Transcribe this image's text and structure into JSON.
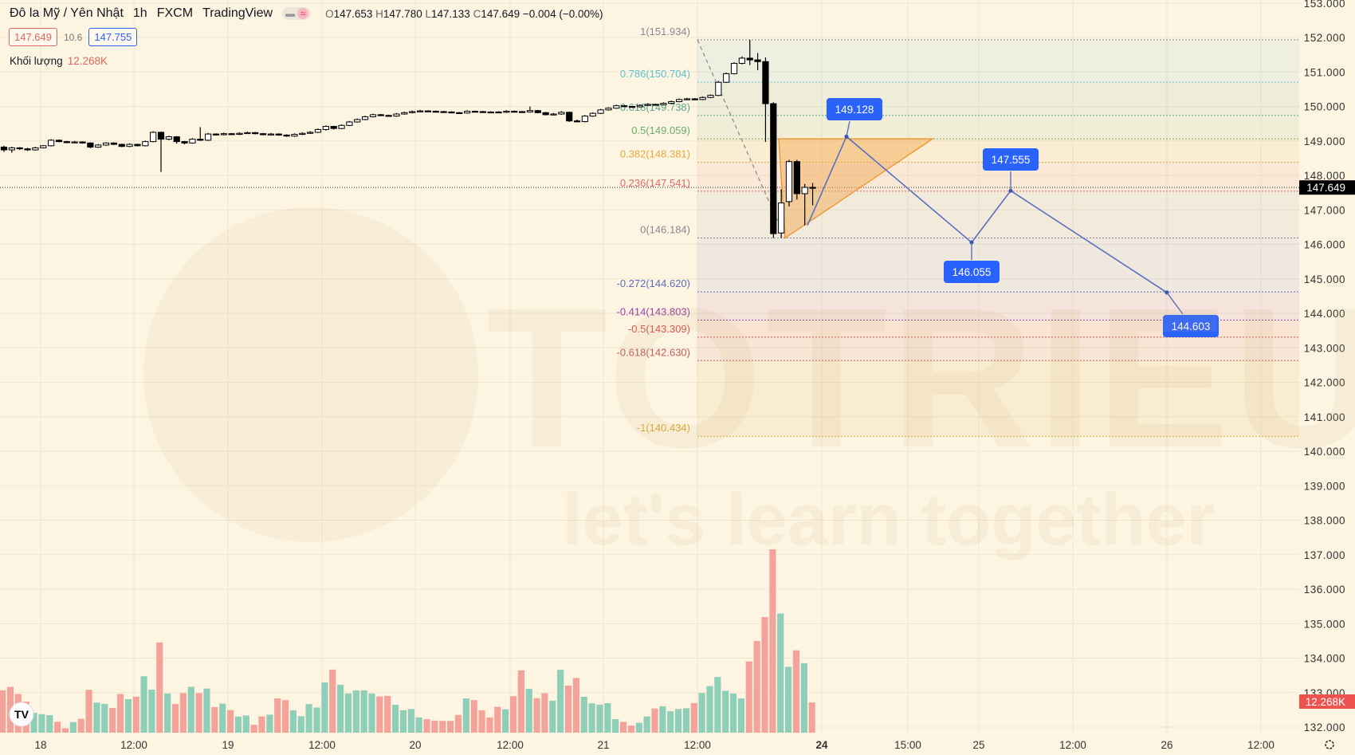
{
  "header": {
    "symbol": "Đô la Mỹ / Yên Nhật",
    "interval": "1h",
    "exchange": "FXCM",
    "source": "TradingView",
    "ohlc": {
      "o_label": "O",
      "o": "147.653",
      "h_label": "H",
      "h": "147.780",
      "l_label": "L",
      "l": "147.133",
      "c_label": "C",
      "c": "147.649",
      "change": "−0.004 (−0.00%)"
    },
    "bid": "147.649",
    "spread": "10.6",
    "ask": "147.755",
    "volume_label": "Khối lượng",
    "volume_value": "12.268K"
  },
  "watermark": {
    "brand": "TOTRIEU",
    "tagline": "let's learn together"
  },
  "colors": {
    "up": "#ffffff",
    "down": "#000000",
    "vol_up": "#8fcfb9",
    "vol_down": "#f4a39a",
    "accent": "#2962ff",
    "last_price_bg": "#000000",
    "volume_tag_bg": "#ef5350",
    "triangle": "#f2a64c"
  },
  "price_axis": {
    "ticks": [
      "153.000",
      "152.000",
      "151.000",
      "150.000",
      "149.000",
      "148.000",
      "147.000",
      "146.000",
      "145.000",
      "144.000",
      "143.000",
      "142.000",
      "141.000",
      "140.000",
      "139.000",
      "138.000",
      "137.000",
      "136.000",
      "135.000",
      "134.000",
      "133.000",
      "132.000"
    ],
    "last_price": "147.649",
    "volume_tag": "12.268K"
  },
  "time_axis": {
    "ticks": [
      "18",
      "12:00",
      "19",
      "12:00",
      "20",
      "12:00",
      "21",
      "12:00",
      "24",
      "15:00",
      "25",
      "12:00",
      "26",
      "12:00"
    ]
  },
  "fibonacci": [
    {
      "label": "1(151.934)",
      "price": 151.934,
      "color": "#868993"
    },
    {
      "label": "0.786(150.704)",
      "price": 150.704,
      "color": "#5cc2d0"
    },
    {
      "label": "0.618(149.738)",
      "price": 149.738,
      "color": "#55a98e"
    },
    {
      "label": "0.5(149.059)",
      "price": 149.059,
      "color": "#6aae6a"
    },
    {
      "label": "0.382(148.381)",
      "price": 148.381,
      "color": "#e8a93f"
    },
    {
      "label": "0.236(147.541)",
      "price": 147.541,
      "color": "#e06a6a"
    },
    {
      "label": "0(146.184)",
      "price": 146.184,
      "color": "#868993"
    },
    {
      "label": "-0.272(144.620)",
      "price": 144.62,
      "color": "#5b6fb8"
    },
    {
      "label": "-0.414(143.803)",
      "price": 143.803,
      "color": "#9c3fa8"
    },
    {
      "label": "-0.5(143.309)",
      "price": 143.309,
      "color": "#d9534f"
    },
    {
      "label": "-0.618(142.630)",
      "price": 142.63,
      "color": "#c25c5c"
    },
    {
      "label": "-1(140.434)",
      "price": 140.434,
      "color": "#d8ab2e"
    }
  ],
  "projection": {
    "start_price": 146.55,
    "points": [
      {
        "label": "149.128",
        "price": 149.128
      },
      {
        "label": "146.055",
        "price": 146.055
      },
      {
        "label": "147.555",
        "price": 147.555
      },
      {
        "label": "144.603",
        "price": 144.603
      }
    ]
  },
  "chart_data": {
    "type": "candlestick",
    "ohlc": [
      [
        148.82,
        148.86,
        148.68,
        148.74
      ],
      [
        148.74,
        148.83,
        148.66,
        148.8
      ],
      [
        148.8,
        148.82,
        148.74,
        148.77
      ],
      [
        148.77,
        148.8,
        148.71,
        148.74
      ],
      [
        148.74,
        148.83,
        148.72,
        148.8
      ],
      [
        148.8,
        148.88,
        148.78,
        148.86
      ],
      [
        148.86,
        149.05,
        148.84,
        149.02
      ],
      [
        149.02,
        149.04,
        148.96,
        148.98
      ],
      [
        148.98,
        149.0,
        148.93,
        148.95
      ],
      [
        148.95,
        149.0,
        148.93,
        148.97
      ],
      [
        148.97,
        148.99,
        148.92,
        148.94
      ],
      [
        148.94,
        148.96,
        148.79,
        148.82
      ],
      [
        148.82,
        148.91,
        148.8,
        148.88
      ],
      [
        148.88,
        148.96,
        148.86,
        148.94
      ],
      [
        148.94,
        148.96,
        148.88,
        148.9
      ],
      [
        148.9,
        148.92,
        148.82,
        148.84
      ],
      [
        148.84,
        148.93,
        148.82,
        148.9
      ],
      [
        148.9,
        148.92,
        148.84,
        148.86
      ],
      [
        148.86,
        149.01,
        148.84,
        148.98
      ],
      [
        148.98,
        149.28,
        148.96,
        149.25
      ],
      [
        149.25,
        149.27,
        148.1,
        149.05
      ],
      [
        149.05,
        149.15,
        149.02,
        149.12
      ],
      [
        149.12,
        149.14,
        148.92,
        148.98
      ],
      [
        148.98,
        149.0,
        148.9,
        148.94
      ],
      [
        148.94,
        149.08,
        148.92,
        149.05
      ],
      [
        149.05,
        149.4,
        149.0,
        149.02
      ],
      [
        149.02,
        149.23,
        149.0,
        149.2
      ],
      [
        149.2,
        149.22,
        149.16,
        149.18
      ],
      [
        149.18,
        149.24,
        149.16,
        149.21
      ],
      [
        149.21,
        149.23,
        149.17,
        149.19
      ],
      [
        149.19,
        149.25,
        149.17,
        149.22
      ],
      [
        149.22,
        149.27,
        149.2,
        149.24
      ],
      [
        149.24,
        149.26,
        149.19,
        149.21
      ],
      [
        149.21,
        149.23,
        149.16,
        149.18
      ],
      [
        149.18,
        149.23,
        149.16,
        149.2
      ],
      [
        149.2,
        149.22,
        149.15,
        149.17
      ],
      [
        149.17,
        149.19,
        149.12,
        149.14
      ],
      [
        149.14,
        149.22,
        149.12,
        149.19
      ],
      [
        149.19,
        149.25,
        149.17,
        149.22
      ],
      [
        149.22,
        149.28,
        149.2,
        149.25
      ],
      [
        149.25,
        149.36,
        149.23,
        149.33
      ],
      [
        149.33,
        149.45,
        149.3,
        149.42
      ],
      [
        149.42,
        149.44,
        149.33,
        149.36
      ],
      [
        149.36,
        149.48,
        149.34,
        149.45
      ],
      [
        149.45,
        149.58,
        149.43,
        149.55
      ],
      [
        149.55,
        149.65,
        149.53,
        149.62
      ],
      [
        149.62,
        149.73,
        149.6,
        149.7
      ],
      [
        149.7,
        149.79,
        149.68,
        149.76
      ],
      [
        149.76,
        149.78,
        149.72,
        149.74
      ],
      [
        149.74,
        149.76,
        149.7,
        149.72
      ],
      [
        149.72,
        149.81,
        149.7,
        149.78
      ],
      [
        149.78,
        149.85,
        149.76,
        149.82
      ],
      [
        149.82,
        149.88,
        149.8,
        149.85
      ],
      [
        149.85,
        149.9,
        149.83,
        149.87
      ],
      [
        149.87,
        149.89,
        149.84,
        149.86
      ],
      [
        149.86,
        149.88,
        149.83,
        149.85
      ],
      [
        149.85,
        149.87,
        149.82,
        149.84
      ],
      [
        149.84,
        149.86,
        149.8,
        149.82
      ],
      [
        149.82,
        149.84,
        149.79,
        149.81
      ],
      [
        149.81,
        149.89,
        149.79,
        149.86
      ],
      [
        149.86,
        149.88,
        149.83,
        149.85
      ],
      [
        149.85,
        149.87,
        149.82,
        149.84
      ],
      [
        149.84,
        149.86,
        149.82,
        149.84
      ],
      [
        149.84,
        149.86,
        149.81,
        149.83
      ],
      [
        149.83,
        149.89,
        149.81,
        149.86
      ],
      [
        149.86,
        149.88,
        149.83,
        149.85
      ],
      [
        149.85,
        149.87,
        149.82,
        149.84
      ],
      [
        149.84,
        150.0,
        149.82,
        149.88
      ],
      [
        149.88,
        149.9,
        149.8,
        149.82
      ],
      [
        149.82,
        149.84,
        149.74,
        149.76
      ],
      [
        149.76,
        149.81,
        149.74,
        149.78
      ],
      [
        149.78,
        149.86,
        149.76,
        149.83
      ],
      [
        149.83,
        149.85,
        149.55,
        149.58
      ],
      [
        149.58,
        149.62,
        149.54,
        149.56
      ],
      [
        149.56,
        149.75,
        149.54,
        149.72
      ],
      [
        149.72,
        149.83,
        149.7,
        149.8
      ],
      [
        149.8,
        149.93,
        149.78,
        149.9
      ],
      [
        149.9,
        149.98,
        149.88,
        149.95
      ],
      [
        149.95,
        150.05,
        149.93,
        150.02
      ],
      [
        150.02,
        150.04,
        149.98,
        150.0
      ],
      [
        150.0,
        150.02,
        149.97,
        149.99
      ],
      [
        149.99,
        150.06,
        149.97,
        150.03
      ],
      [
        150.03,
        150.09,
        150.01,
        150.06
      ],
      [
        150.06,
        150.08,
        150.03,
        150.05
      ],
      [
        150.05,
        150.12,
        150.03,
        150.09
      ],
      [
        150.09,
        150.17,
        150.07,
        150.14
      ],
      [
        150.14,
        150.23,
        150.12,
        150.2
      ],
      [
        150.2,
        150.25,
        150.18,
        150.22
      ],
      [
        150.22,
        150.24,
        150.18,
        150.2
      ],
      [
        150.2,
        150.29,
        150.18,
        150.26
      ],
      [
        150.26,
        150.35,
        150.24,
        150.32
      ],
      [
        150.32,
        150.74,
        150.3,
        150.7
      ],
      [
        150.7,
        150.98,
        150.68,
        150.95
      ],
      [
        150.95,
        151.28,
        150.93,
        151.25
      ],
      [
        151.25,
        151.45,
        151.22,
        151.4
      ],
      [
        151.4,
        151.934,
        151.2,
        151.35
      ],
      [
        151.35,
        151.55,
        151.05,
        151.3
      ],
      [
        151.3,
        151.42,
        148.97,
        150.08
      ],
      [
        150.08,
        150.12,
        146.184,
        146.31
      ],
      [
        146.33,
        147.6,
        146.184,
        147.2
      ],
      [
        147.24,
        148.45,
        147.1,
        148.4
      ],
      [
        148.4,
        148.45,
        147.3,
        147.47
      ],
      [
        147.47,
        147.75,
        146.55,
        147.653
      ],
      [
        147.653,
        147.78,
        147.133,
        147.649
      ]
    ],
    "volume_k": [
      17.2,
      18.6,
      15.7,
      12.6,
      8.1,
      7.5,
      7.1,
      4.4,
      1.8,
      4.3,
      5.6,
      17.4,
      12.2,
      11.7,
      10.0,
      15.7,
      13.6,
      14.6,
      22.9,
      17.5,
      36.6,
      15.9,
      11.6,
      16.1,
      18.6,
      16.1,
      17.9,
      10.4,
      11.8,
      9.2,
      6.5,
      7.0,
      3.2,
      6.6,
      7.3,
      13.9,
      13.2,
      9.1,
      6.7,
      11.6,
      10.2,
      20.4,
      25.6,
      19.4,
      15.9,
      17.1,
      17.2,
      15.9,
      14.7,
      14.9,
      11.3,
      9.1,
      9.6,
      6.2,
      5.5,
      4.9,
      4.8,
      4.8,
      7.2,
      13.9,
      13.2,
      9.1,
      6.2,
      10.5,
      9.5,
      14.8,
      25.3,
      17.8,
      14.0,
      16.0,
      13.0,
      25.5,
      19.1,
      22.2,
      14.6,
      11.9,
      11.4,
      12.0,
      5.5,
      4.4,
      2.9,
      4.0,
      6.6,
      9.8,
      10.7,
      8.7,
      9.6,
      9.9,
      12.0,
      16.1,
      18.9,
      22.6,
      17.0,
      15.9,
      13.9,
      28.9,
      37.2,
      46.9,
      74.4,
      48.4,
      26.7,
      33.4,
      28.2,
      12.268
    ],
    "volume_direction": "rrrrgggrrgrrggrrgrggrgrrgrgrgrggrrgrrgggggrgggggrrggggrrrrrgrrrrgrrgrrggrrgggggrrggrggggrggggggrrrrggrgr",
    "ylim": [
      132,
      153
    ]
  }
}
